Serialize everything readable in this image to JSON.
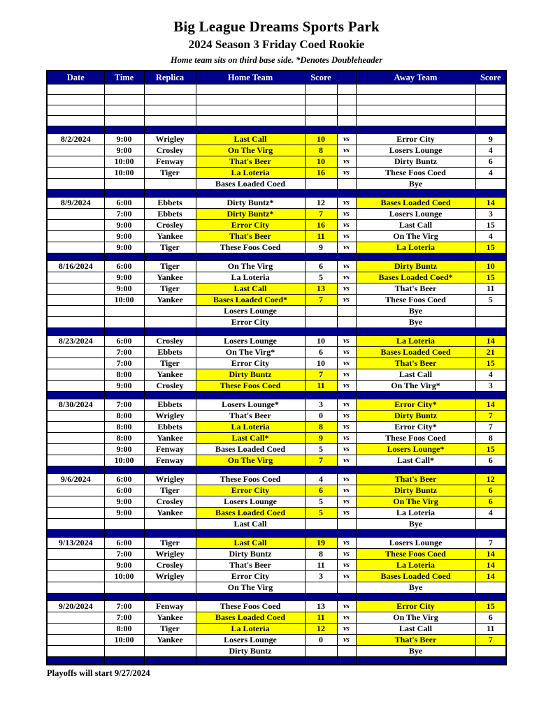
{
  "page": {
    "title": "Big League Dreams Sports Park",
    "subtitle": "2024 Season 3 Friday Coed Rookie",
    "note": "Home team sits on third base side.  *Denotes Doubleheader",
    "footer": "Playoffs will start 9/27/2024"
  },
  "colors": {
    "header_bg": "#00008B",
    "header_text": "#FFFFFF",
    "highlight": "#FFFF00",
    "border": "#000000"
  },
  "table": {
    "headers": {
      "date": "Date",
      "time": "Time",
      "replica": "Replica",
      "home": "Home Team",
      "home_score": "Score",
      "vs": "",
      "away": "Away Team",
      "away_score": "Score"
    },
    "vs_label": "vs",
    "empty_row_count": 4,
    "groups": [
      {
        "date": "8/2/2024",
        "rows": [
          {
            "date": "8/2/2024",
            "time": "9:00",
            "replica": "Wrigley",
            "home": "Last Call",
            "home_score": "10",
            "away": "Error City",
            "away_score": "9",
            "hl_home": true,
            "hl_away": false,
            "vs": true
          },
          {
            "date": "",
            "time": "9:00",
            "replica": "Crosley",
            "home": "On The Virg",
            "home_score": "8",
            "away": "Losers Lounge",
            "away_score": "4",
            "hl_home": true,
            "hl_away": false,
            "vs": true
          },
          {
            "date": "",
            "time": "10:00",
            "replica": "Fenway",
            "home": "That's Beer",
            "home_score": "10",
            "away": "Dirty Buntz",
            "away_score": "6",
            "hl_home": true,
            "hl_away": false,
            "vs": true
          },
          {
            "date": "",
            "time": "10:00",
            "replica": "Tiger",
            "home": "La Loteria",
            "home_score": "16",
            "away": "These Foos Coed",
            "away_score": "4",
            "hl_home": true,
            "hl_away": false,
            "vs": true
          },
          {
            "date": "",
            "time": "",
            "replica": "",
            "home": "Bases Loaded Coed",
            "home_score": "",
            "away": "Bye",
            "away_score": "",
            "hl_home": false,
            "hl_away": false,
            "vs": false
          }
        ]
      },
      {
        "date": "8/9/2024",
        "rows": [
          {
            "date": "8/9/2024",
            "time": "6:00",
            "replica": "Ebbets",
            "home": "Dirty Buntz*",
            "home_score": "12",
            "away": "Bases Loaded Coed",
            "away_score": "14",
            "hl_home": false,
            "hl_away": true,
            "vs": true
          },
          {
            "date": "",
            "time": "7:00",
            "replica": "Ebbets",
            "home": "Dirty Buntz*",
            "home_score": "7",
            "away": "Losers Lounge",
            "away_score": "3",
            "hl_home": true,
            "hl_away": false,
            "vs": true
          },
          {
            "date": "",
            "time": "9:00",
            "replica": "Crosley",
            "home": "Error City",
            "home_score": "16",
            "away": "Last Call",
            "away_score": "15",
            "hl_home": true,
            "hl_away": false,
            "vs": true
          },
          {
            "date": "",
            "time": "9:00",
            "replica": "Yankee",
            "home": "That's Beer",
            "home_score": "11",
            "away": "On The Virg",
            "away_score": "4",
            "hl_home": true,
            "hl_away": false,
            "vs": true
          },
          {
            "date": "",
            "time": "9:00",
            "replica": "Tiger",
            "home": "These Foos Coed",
            "home_score": "9",
            "away": "La Loteria",
            "away_score": "15",
            "hl_home": false,
            "hl_away": true,
            "vs": true
          }
        ]
      },
      {
        "date": "8/16/2024",
        "rows": [
          {
            "date": "8/16/2024",
            "time": "6:00",
            "replica": "Tiger",
            "home": "On The Virg",
            "home_score": "6",
            "away": "Dirty Buntz",
            "away_score": "10",
            "hl_home": false,
            "hl_away": true,
            "vs": true
          },
          {
            "date": "",
            "time": "9:00",
            "replica": "Yankee",
            "home": "La Loteria",
            "home_score": "5",
            "away": "Bases Loaded Coed*",
            "away_score": "15",
            "hl_home": false,
            "hl_away": true,
            "vs": true
          },
          {
            "date": "",
            "time": "9:00",
            "replica": "Tiger",
            "home": "Last Call",
            "home_score": "13",
            "away": "That's Beer",
            "away_score": "11",
            "hl_home": true,
            "hl_away": false,
            "vs": true
          },
          {
            "date": "",
            "time": "10:00",
            "replica": "Yankee",
            "home": "Bases Loaded Coed*",
            "home_score": "7",
            "away": "These Foos Coed",
            "away_score": "5",
            "hl_home": true,
            "hl_away": false,
            "vs": true
          },
          {
            "date": "",
            "time": "",
            "replica": "",
            "home": "Losers Lounge",
            "home_score": "",
            "away": "Bye",
            "away_score": "",
            "hl_home": false,
            "hl_away": false,
            "vs": false
          },
          {
            "date": "",
            "time": "",
            "replica": "",
            "home": "Error City",
            "home_score": "",
            "away": "Bye",
            "away_score": "",
            "hl_home": false,
            "hl_away": false,
            "vs": false
          }
        ]
      },
      {
        "date": "8/23/2024",
        "rows": [
          {
            "date": "8/23/2024",
            "time": "6:00",
            "replica": "Crosley",
            "home": "Losers Lounge",
            "home_score": "10",
            "away": "La Loteria",
            "away_score": "14",
            "hl_home": false,
            "hl_away": true,
            "vs": true
          },
          {
            "date": "",
            "time": "7:00",
            "replica": "Ebbets",
            "home": "On The Virg*",
            "home_score": "6",
            "away": "Bases Loaded Coed",
            "away_score": "21",
            "hl_home": false,
            "hl_away": true,
            "vs": true
          },
          {
            "date": "",
            "time": "7:00",
            "replica": "Tiger",
            "home": "Error City",
            "home_score": "10",
            "away": "That's Beer",
            "away_score": "15",
            "hl_home": false,
            "hl_away": true,
            "vs": true
          },
          {
            "date": "",
            "time": "8:00",
            "replica": "Yankee",
            "home": "Dirty Buntz",
            "home_score": "7",
            "away": "Last Call",
            "away_score": "4",
            "hl_home": true,
            "hl_away": false,
            "vs": true
          },
          {
            "date": "",
            "time": "9:00",
            "replica": "Crosley",
            "home": "These Foos Coed",
            "home_score": "11",
            "away": "On The Virg*",
            "away_score": "3",
            "hl_home": true,
            "hl_away": false,
            "vs": true
          }
        ]
      },
      {
        "date": "8/30/2024",
        "rows": [
          {
            "date": "8/30/2024",
            "time": "7:00",
            "replica": "Ebbets",
            "home": "Losers Lounge*",
            "home_score": "3",
            "away": "Error City*",
            "away_score": "14",
            "hl_home": false,
            "hl_away": true,
            "vs": true
          },
          {
            "date": "",
            "time": "8:00",
            "replica": "Wrigley",
            "home": "That's Beer",
            "home_score": "0",
            "away": "Dirty Buntz",
            "away_score": "7",
            "hl_home": false,
            "hl_away": true,
            "vs": true
          },
          {
            "date": "",
            "time": "8:00",
            "replica": "Ebbets",
            "home": "La Loteria",
            "home_score": "8",
            "away": "Error City*",
            "away_score": "7",
            "hl_home": true,
            "hl_away": false,
            "vs": true
          },
          {
            "date": "",
            "time": "8:00",
            "replica": "Yankee",
            "home": "Last Call*",
            "home_score": "9",
            "away": "These Foos Coed",
            "away_score": "8",
            "hl_home": true,
            "hl_away": false,
            "vs": true
          },
          {
            "date": "",
            "time": "9:00",
            "replica": "Fenway",
            "home": "Bases Loaded Coed",
            "home_score": "5",
            "away": "Losers Lounge*",
            "away_score": "15",
            "hl_home": false,
            "hl_away": true,
            "vs": true
          },
          {
            "date": "",
            "time": "10:00",
            "replica": "Fenway",
            "home": "On The Virg",
            "home_score": "7",
            "away": "Last Call*",
            "away_score": "6",
            "hl_home": true,
            "hl_away": false,
            "vs": true
          }
        ]
      },
      {
        "date": "9/6/2024",
        "rows": [
          {
            "date": "9/6/2024",
            "time": "6:00",
            "replica": "Wrigley",
            "home": "These Foos Coed",
            "home_score": "4",
            "away": "That's Beer",
            "away_score": "12",
            "hl_home": false,
            "hl_away": true,
            "vs": true
          },
          {
            "date": "",
            "time": "6:00",
            "replica": "Tiger",
            "home": "Error City",
            "home_score": "6",
            "away": "Dirty Buntz",
            "away_score": "6",
            "hl_home": true,
            "hl_away": true,
            "vs": true
          },
          {
            "date": "",
            "time": "9:00",
            "replica": "Crosley",
            "home": "Losers Lounge",
            "home_score": "5",
            "away": "On The Virg",
            "away_score": "6",
            "hl_home": false,
            "hl_away": true,
            "vs": true
          },
          {
            "date": "",
            "time": "9:00",
            "replica": "Yankee",
            "home": "Bases Loaded Coed",
            "home_score": "5",
            "away": "La Loteria",
            "away_score": "4",
            "hl_home": true,
            "hl_away": false,
            "vs": true
          },
          {
            "date": "",
            "time": "",
            "replica": "",
            "home": "Last Call",
            "home_score": "",
            "away": "Bye",
            "away_score": "",
            "hl_home": false,
            "hl_away": false,
            "vs": false
          }
        ]
      },
      {
        "date": "9/13/2024",
        "rows": [
          {
            "date": "9/13/2024",
            "time": "6:00",
            "replica": "Tiger",
            "home": "Last Call",
            "home_score": "19",
            "away": "Losers Lounge",
            "away_score": "7",
            "hl_home": true,
            "hl_away": false,
            "vs": true
          },
          {
            "date": "",
            "time": "7:00",
            "replica": "Wrigley",
            "home": "Dirty Buntz",
            "home_score": "8",
            "away": "These Foos Coed",
            "away_score": "14",
            "hl_home": false,
            "hl_away": true,
            "vs": true
          },
          {
            "date": "",
            "time": "9:00",
            "replica": "Crosley",
            "home": "That's Beer",
            "home_score": "11",
            "away": "La Loteria",
            "away_score": "14",
            "hl_home": false,
            "hl_away": true,
            "vs": true
          },
          {
            "date": "",
            "time": "10:00",
            "replica": "Wrigley",
            "home": "Error City",
            "home_score": "3",
            "away": "Bases Loaded Coed",
            "away_score": "14",
            "hl_home": false,
            "hl_away": true,
            "vs": true
          },
          {
            "date": "",
            "time": "",
            "replica": "",
            "home": "On The Virg",
            "home_score": "",
            "away": "Bye",
            "away_score": "",
            "hl_home": false,
            "hl_away": false,
            "vs": false
          }
        ]
      },
      {
        "date": "9/20/2024",
        "rows": [
          {
            "date": "9/20/2024",
            "time": "7:00",
            "replica": "Fenway",
            "home": "These Foos Coed",
            "home_score": "13",
            "away": "Error City",
            "away_score": "15",
            "hl_home": false,
            "hl_away": true,
            "vs": true
          },
          {
            "date": "",
            "time": "7:00",
            "replica": "Yankee",
            "home": "Bases Loaded Coed",
            "home_score": "11",
            "away": "On The Virg",
            "away_score": "6",
            "hl_home": true,
            "hl_away": false,
            "vs": true
          },
          {
            "date": "",
            "time": "8:00",
            "replica": "Tiger",
            "home": "La Loteria",
            "home_score": "12",
            "away": "Last Call",
            "away_score": "11",
            "hl_home": true,
            "hl_away": false,
            "vs": true
          },
          {
            "date": "",
            "time": "10:00",
            "replica": "Yankee",
            "home": "Losers Lounge",
            "home_score": "0",
            "away": "That's Beer",
            "away_score": "7",
            "hl_home": false,
            "hl_away": true,
            "vs": true
          },
          {
            "date": "",
            "time": "",
            "replica": "",
            "home": "Dirty Buntz",
            "home_score": "",
            "away": "Bye",
            "away_score": "",
            "hl_home": false,
            "hl_away": false,
            "vs": false
          }
        ]
      }
    ]
  }
}
